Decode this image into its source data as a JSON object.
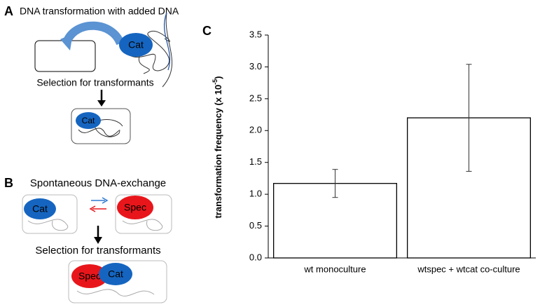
{
  "panels": {
    "a": {
      "letter": "A",
      "title": "DNA transformation with added DNA",
      "gene": "Cat",
      "step": "Selection for transformants",
      "result_gene": "Cat"
    },
    "b": {
      "letter": "B",
      "title": "Spontaneous DNA-exchange",
      "donor_gene": "Cat",
      "recipient_gene": "Spec",
      "step": "Selection for transformants",
      "result_genes": [
        "Spec",
        "Cat"
      ]
    },
    "c": {
      "letter": "C"
    }
  },
  "chart_data": {
    "type": "bar",
    "ylabel": {
      "text": "transformation frequency (x 10",
      "exponent": "-5",
      "close": ")"
    },
    "categories": [
      "wt monoculture",
      "wtspec + wtcat co-culture"
    ],
    "values": [
      1.17,
      2.2
    ],
    "errors": [
      0.22,
      0.84
    ],
    "color": "#ffffff",
    "ylim": [
      0,
      3.5
    ],
    "yticks": [
      {
        "value": 0,
        "label": "0.0"
      },
      0.5,
      {
        "value": 1,
        "label": "1.0"
      },
      1.5,
      {
        "value": 2,
        "label": "2.0"
      },
      2.5,
      {
        "value": 3,
        "label": "3.0"
      },
      3.5
    ]
  }
}
